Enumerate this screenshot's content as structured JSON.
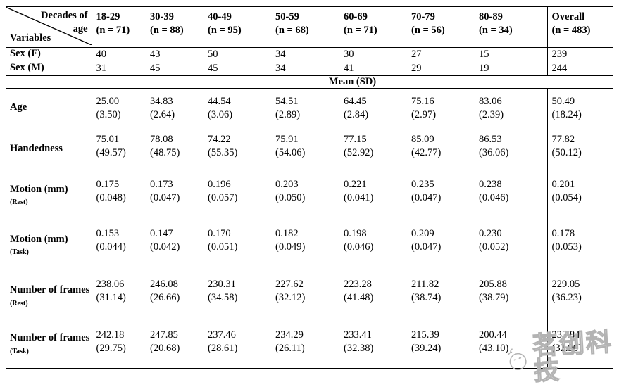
{
  "table": {
    "corner": {
      "top_label": "Decades of",
      "top_label2": "age",
      "bottom_label": "Variables"
    },
    "columns": [
      {
        "label": "18-29",
        "n": "(n = 71)"
      },
      {
        "label": "30-39",
        "n": "(n = 88)"
      },
      {
        "label": "40-49",
        "n": "(n = 95)"
      },
      {
        "label": "50-59",
        "n": "(n = 68)"
      },
      {
        "label": "60-69",
        "n": "(n = 71)"
      },
      {
        "label": "70-79",
        "n": "(n = 56)"
      },
      {
        "label": "80-89",
        "n": "(n = 34)"
      },
      {
        "label": "Overall",
        "n": "(n = 483)"
      }
    ],
    "count_rows": [
      {
        "label": "Sex (F)",
        "values": [
          "40",
          "43",
          "50",
          "34",
          "30",
          "27",
          "15",
          "239"
        ]
      },
      {
        "label": "Sex (M)",
        "values": [
          "31",
          "45",
          "45",
          "34",
          "41",
          "29",
          "19",
          "244"
        ]
      }
    ],
    "section_band": "Mean (SD)",
    "mean_rows": [
      {
        "label": "Age",
        "sub": "",
        "sub_inline": false,
        "cells": [
          [
            "25.00",
            "(3.50)"
          ],
          [
            "34.83",
            "(2.64)"
          ],
          [
            "44.54",
            "(3.06)"
          ],
          [
            "54.51",
            "(2.89)"
          ],
          [
            "64.45",
            "(2.84)"
          ],
          [
            "75.16",
            "(2.97)"
          ],
          [
            "83.06",
            "(2.39)"
          ],
          [
            "50.49",
            "(18.24)"
          ]
        ]
      },
      {
        "label": "Handedness",
        "sub": "",
        "sub_inline": false,
        "cells": [
          [
            "75.01",
            "(49.57)"
          ],
          [
            "78.08",
            "(48.75)"
          ],
          [
            "74.22",
            "(55.35)"
          ],
          [
            "75.91",
            "(54.06)"
          ],
          [
            "77.15",
            "(52.92)"
          ],
          [
            "85.09",
            "(42.77)"
          ],
          [
            "86.53",
            "(36.06)"
          ],
          [
            "77.82",
            "(50.12)"
          ]
        ]
      },
      {
        "label": "Motion (mm)",
        "sub": "(Rest)",
        "sub_inline": false,
        "cells": [
          [
            "0.175",
            "(0.048)"
          ],
          [
            "0.173",
            "(0.047)"
          ],
          [
            "0.196",
            "(0.057)"
          ],
          [
            "0.203",
            "(0.050)"
          ],
          [
            "0.221",
            "(0.041)"
          ],
          [
            "0.235",
            "(0.047)"
          ],
          [
            "0.238",
            "(0.046)"
          ],
          [
            "0.201",
            "(0.054)"
          ]
        ]
      },
      {
        "label": "Motion (mm)",
        "sub": "(Task)",
        "sub_inline": false,
        "cells": [
          [
            "0.153",
            "(0.044)"
          ],
          [
            "0.147",
            "(0.042)"
          ],
          [
            "0.170",
            "(0.051)"
          ],
          [
            "0.182",
            "(0.049)"
          ],
          [
            "0.198",
            "(0.046)"
          ],
          [
            "0.209",
            "(0.047)"
          ],
          [
            "0.230",
            "(0.052)"
          ],
          [
            "0.178",
            "(0.053)"
          ]
        ]
      },
      {
        "label": "Number of frames",
        "sub": "(Rest)",
        "sub_inline": true,
        "cells": [
          [
            "238.06",
            "(31.14)"
          ],
          [
            "246.08",
            "(26.66)"
          ],
          [
            "230.31",
            "(34.58)"
          ],
          [
            "227.62",
            "(32.12)"
          ],
          [
            "223.28",
            "(41.48)"
          ],
          [
            "211.82",
            "(38.74)"
          ],
          [
            "205.88",
            "(38.79)"
          ],
          [
            "229.05",
            "(36.23)"
          ]
        ]
      },
      {
        "label": "Number of frames",
        "sub": "(Task)",
        "sub_inline": true,
        "cells": [
          [
            "242.18",
            "(29.75)"
          ],
          [
            "247.85",
            "(20.68)"
          ],
          [
            "237.46",
            "(28.61)"
          ],
          [
            "234.29",
            "(26.11)"
          ],
          [
            "233.41",
            "(32.38)"
          ],
          [
            "215.39",
            "(39.24)"
          ],
          [
            "200.44",
            "(43.10)"
          ],
          [
            "233.84",
            "(32.90)"
          ]
        ]
      }
    ]
  },
  "watermark": {
    "brand": "茗创科技"
  }
}
